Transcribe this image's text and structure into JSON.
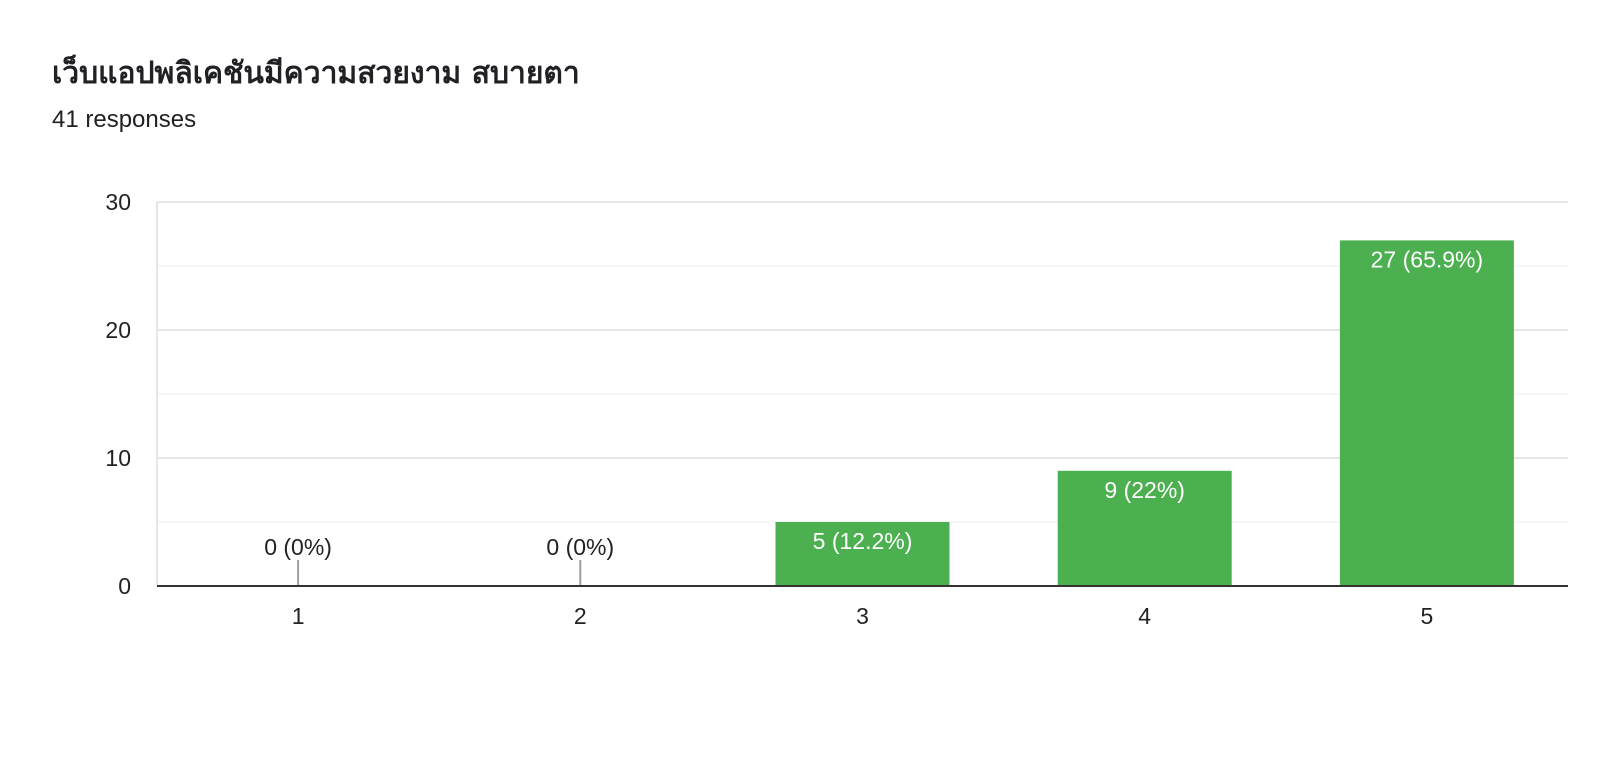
{
  "question": {
    "title": "เว็บแอปพลิเคชันมีความสวยงาม สบายตา",
    "responses": "41 responses"
  },
  "colors": {
    "bar": "#4caf50",
    "grid": "#ebebeb",
    "axis": "#333333",
    "label_inside": "#ffffff",
    "label_outside": "#222222",
    "zero_stub": "#9e9e9e"
  },
  "chart_data": {
    "type": "bar",
    "title": "เว็บแอปพลิเคชันมีความสวยงาม สบายตา",
    "xlabel": "",
    "ylabel": "",
    "categories": [
      "1",
      "2",
      "3",
      "4",
      "5"
    ],
    "values": [
      0,
      0,
      5,
      9,
      27
    ],
    "data_labels": [
      "0 (0%)",
      "0 (0%)",
      "5 (12.2%)",
      "9 (22%)",
      "27 (65.9%)"
    ],
    "ylim": [
      0,
      30
    ],
    "yticks": [
      0,
      10,
      20,
      30
    ],
    "yticks_labels": [
      "0",
      "10",
      "20",
      "30"
    ],
    "grid": true,
    "legend": "none"
  }
}
